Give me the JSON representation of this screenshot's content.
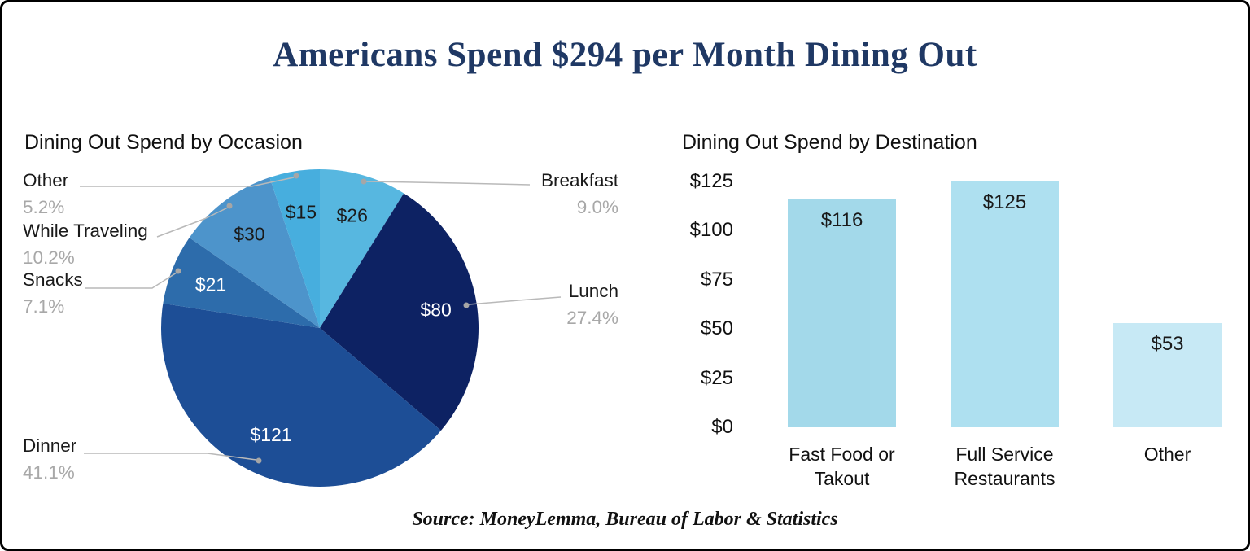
{
  "page": {
    "title": "Americans Spend $294 per Month Dining Out",
    "source": "Source: MoneyLemma, Bureau of Labor & Statistics"
  },
  "colors": {
    "title_navy": "#1f3864",
    "callout_gray": "#a8a8a8",
    "leader_gray": "#b9b9b9"
  },
  "chart_data": [
    {
      "type": "pie",
      "title": "Dining Out Spend by Occasion",
      "segments": [
        {
          "label": "Breakfast",
          "value": 26,
          "amount": "$26",
          "pct": "9.0%",
          "color": "#57b7e0",
          "text": "dark"
        },
        {
          "label": "Lunch",
          "value": 80,
          "amount": "$80",
          "pct": "27.4%",
          "color": "#0d2263",
          "text": "light"
        },
        {
          "label": "Dinner",
          "value": 121,
          "amount": "$121",
          "pct": "41.1%",
          "color": "#1d4e96",
          "text": "light"
        },
        {
          "label": "Snacks",
          "value": 21,
          "amount": "$21",
          "pct": "7.1%",
          "color": "#2d6cab",
          "text": "light"
        },
        {
          "label": "While Traveling",
          "value": 30,
          "amount": "$30",
          "pct": "10.2%",
          "color": "#4d94cb",
          "text": "dark"
        },
        {
          "label": "Other",
          "value": 15,
          "amount": "$15",
          "pct": "5.2%",
          "color": "#47aede",
          "text": "dark"
        }
      ]
    },
    {
      "type": "bar",
      "title": "Dining Out Spend by Destination",
      "categories": [
        "Fast Food or Takout",
        "Full Service Restaurants",
        "Other"
      ],
      "category_lines": [
        [
          "Fast Food or",
          "Takout"
        ],
        [
          "Full Service",
          "Restaurants"
        ],
        [
          "Other"
        ]
      ],
      "values": [
        116,
        125,
        53
      ],
      "value_labels": [
        "$116",
        "$125",
        "$53"
      ],
      "colors": [
        "#a3d9ea",
        "#aee0f0",
        "#c7e9f5"
      ],
      "y_ticks": [
        "$125",
        "$100",
        "$75",
        "$50",
        "$25",
        "$0"
      ],
      "ylim": [
        0,
        125
      ],
      "grid": false,
      "legend": false
    }
  ]
}
